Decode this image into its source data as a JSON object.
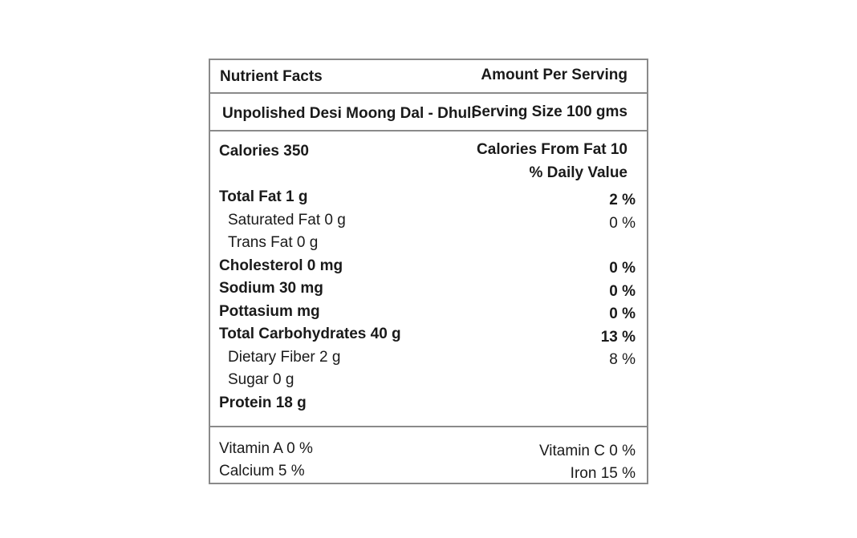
{
  "header": {
    "left": "Nutrient Facts",
    "right": "Amount Per Serving"
  },
  "product": {
    "name": "Unpolished Desi Moong Dal - Dhuli",
    "serving": "Serving Size 100 gms"
  },
  "calories": {
    "label": "Calories 350",
    "from_fat": "Calories From Fat 10",
    "daily_value_header": "% Daily Value"
  },
  "nutrients": [
    {
      "label": "Total Fat 1 g",
      "dv": "2 %",
      "bold": true
    },
    {
      "label": "Saturated Fat 0 g",
      "dv": "0 %",
      "bold": false
    },
    {
      "label": "Trans Fat 0 g",
      "dv": "",
      "bold": false
    },
    {
      "label": "Cholesterol 0 mg",
      "dv": "0 %",
      "bold": true
    },
    {
      "label": "Sodium 30 mg",
      "dv": "0 %",
      "bold": true
    },
    {
      "label": "Pottasium mg",
      "dv": "0 %",
      "bold": true
    },
    {
      "label": "Total Carbohydrates 40 g",
      "dv": "13 %",
      "bold": true
    },
    {
      "label": "Dietary Fiber 2 g",
      "dv": "8 %",
      "bold": false
    },
    {
      "label": "Sugar 0 g",
      "dv": "",
      "bold": false
    },
    {
      "label": "Protein 18 g",
      "dv": "",
      "bold": true
    }
  ],
  "vitamins": {
    "vitamin_a": "Vitamin A 0 %",
    "vitamin_c": "Vitamin C 0 %",
    "calcium": "Calcium 5 %",
    "iron": "Iron 15 %"
  }
}
